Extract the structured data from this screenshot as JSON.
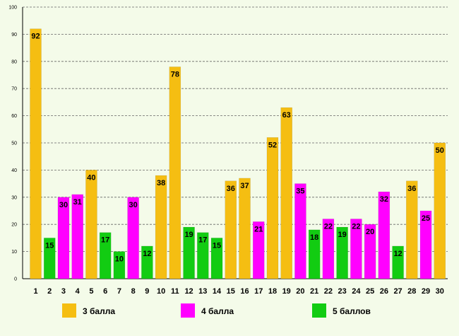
{
  "chart_data": {
    "type": "bar",
    "title": "",
    "xlabel": "",
    "ylabel": "",
    "ylim": [
      0,
      100
    ],
    "yticks": [
      0,
      10,
      20,
      30,
      40,
      50,
      60,
      70,
      80,
      90,
      100
    ],
    "grid": true,
    "categories": [
      "1",
      "2",
      "3",
      "4",
      "5",
      "6",
      "7",
      "8",
      "9",
      "10",
      "11",
      "12",
      "13",
      "14",
      "15",
      "16",
      "17",
      "18",
      "19",
      "20",
      "21",
      "22",
      "23",
      "24",
      "25",
      "26",
      "27",
      "28",
      "29",
      "30"
    ],
    "values": [
      92,
      15,
      30,
      31,
      40,
      17,
      10,
      30,
      12,
      38,
      78,
      19,
      17,
      15,
      36,
      37,
      21,
      52,
      63,
      35,
      18,
      22,
      19,
      22,
      20,
      32,
      12,
      36,
      25,
      50
    ],
    "groups": [
      "3",
      "5",
      "4",
      "4",
      "3",
      "5",
      "5",
      "4",
      "5",
      "3",
      "3",
      "5",
      "5",
      "5",
      "3",
      "3",
      "4",
      "3",
      "3",
      "4",
      "5",
      "4",
      "5",
      "4",
      "4",
      "4",
      "5",
      "3",
      "4",
      "3"
    ],
    "legend_position": "bottom",
    "legend": [
      {
        "key": "3",
        "label": "3 балла",
        "color": "#f5be12"
      },
      {
        "key": "4",
        "label": "4 балла",
        "color": "#ff00ff"
      },
      {
        "key": "5",
        "label": "5 баллов",
        "color": "#12cc12"
      }
    ]
  }
}
